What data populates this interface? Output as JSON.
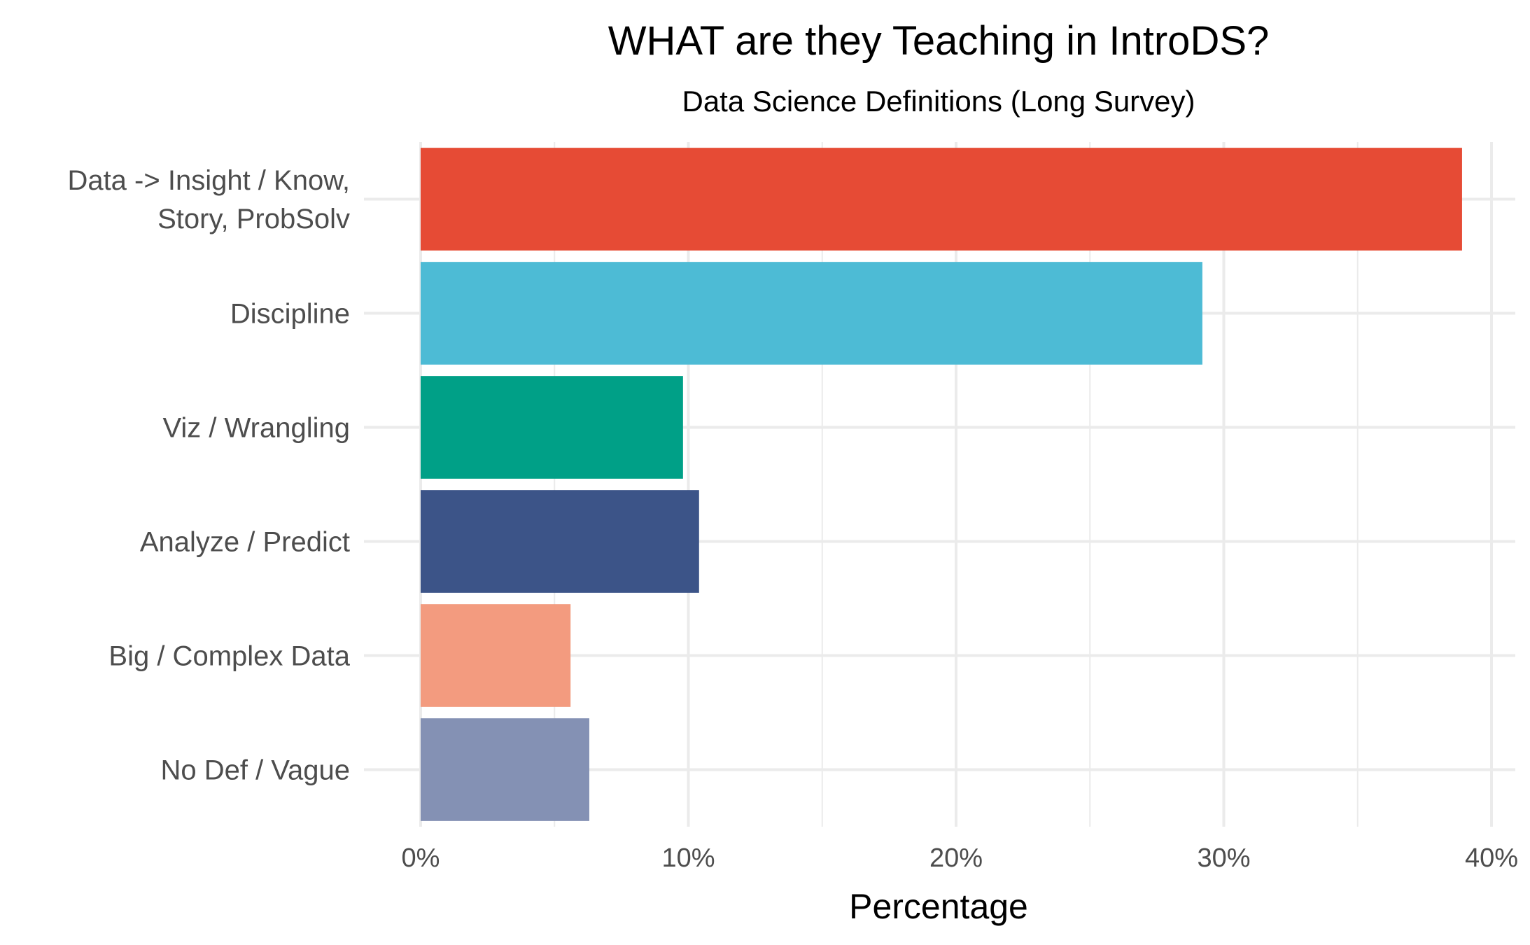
{
  "chart_data": {
    "type": "bar",
    "orientation": "horizontal",
    "title": "WHAT are they Teaching in IntroDS?",
    "subtitle": "Data Science Definitions (Long Survey)",
    "xlabel": "Percentage",
    "ylabel": "",
    "xlim": [
      0,
      40
    ],
    "xticks": [
      0,
      10,
      20,
      30,
      40
    ],
    "xtick_labels": [
      "0%",
      "10%",
      "20%",
      "30%",
      "40%"
    ],
    "grid": true,
    "legend": "none",
    "categories": [
      "Data -> Insight / Know,\nStory, ProbSolv",
      "Discipline",
      "Viz / Wrangling",
      "Analyze / Predict",
      "Big / Complex Data",
      "No Def / Vague"
    ],
    "values": [
      38.9,
      29.2,
      9.8,
      10.4,
      5.6,
      6.3
    ],
    "colors": [
      "#E64B35",
      "#4DBBD5",
      "#00A087",
      "#3C5488",
      "#F39B7F",
      "#8491B4"
    ]
  }
}
